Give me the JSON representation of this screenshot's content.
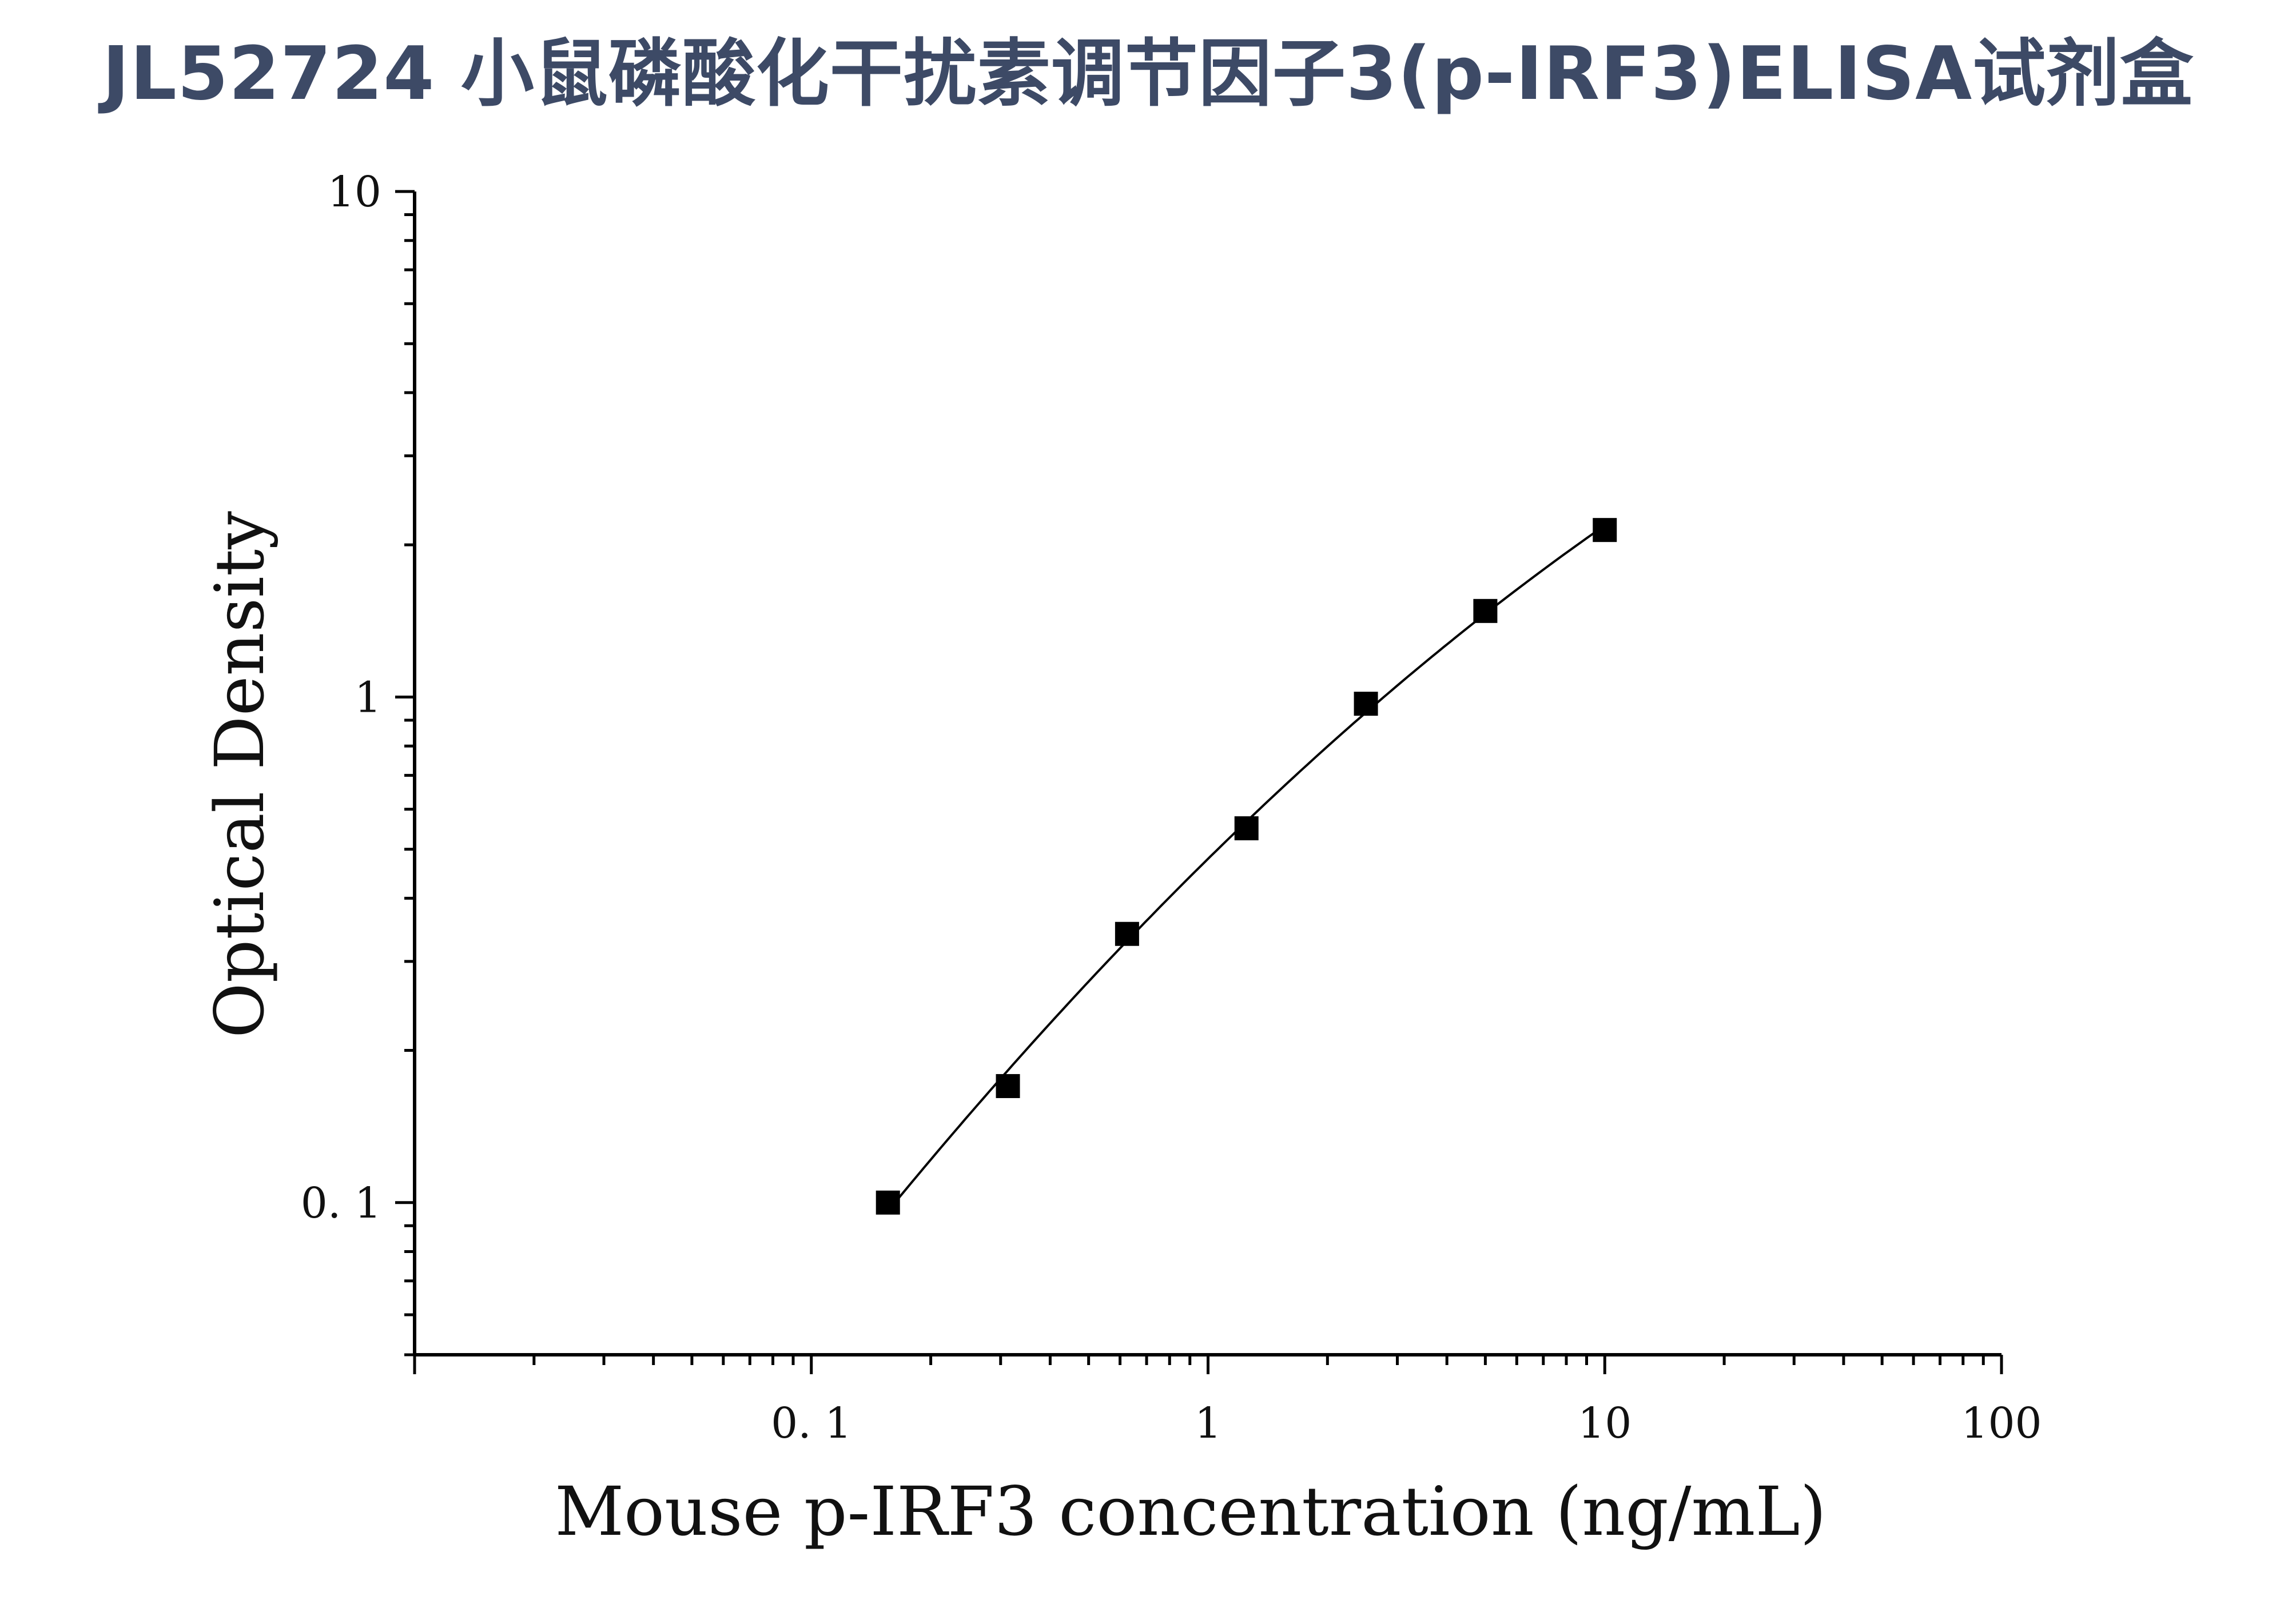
{
  "title": "JL52724 小鼠磷酸化干扰素调节因子3(p-IRF3)ELISA试剂盒",
  "chart_data": {
    "type": "scatter",
    "xlabel": "Mouse p-IRF3 concentration (ng/mL)",
    "ylabel": "Optical Density",
    "x_scale": "log",
    "y_scale": "log",
    "xlim": [
      0.01,
      100
    ],
    "ylim": [
      0.05,
      10
    ],
    "x_ticks": [
      {
        "value": 0.1,
        "label": "0. 1"
      },
      {
        "value": 1,
        "label": "1"
      },
      {
        "value": 10,
        "label": "10"
      },
      {
        "value": 100,
        "label": "100"
      }
    ],
    "y_ticks": [
      {
        "value": 0.1,
        "label": "0. 1"
      },
      {
        "value": 1,
        "label": "1"
      },
      {
        "value": 10,
        "label": "10"
      }
    ],
    "grid": false,
    "marker": "square",
    "fit_curve": true,
    "x": [
      0.156,
      0.313,
      0.625,
      1.25,
      2.5,
      5,
      10
    ],
    "y": [
      0.1,
      0.17,
      0.34,
      0.55,
      0.97,
      1.48,
      2.14
    ],
    "colors": {
      "marker": "#000000",
      "line": "#000000",
      "title": "#3d4a66"
    }
  }
}
